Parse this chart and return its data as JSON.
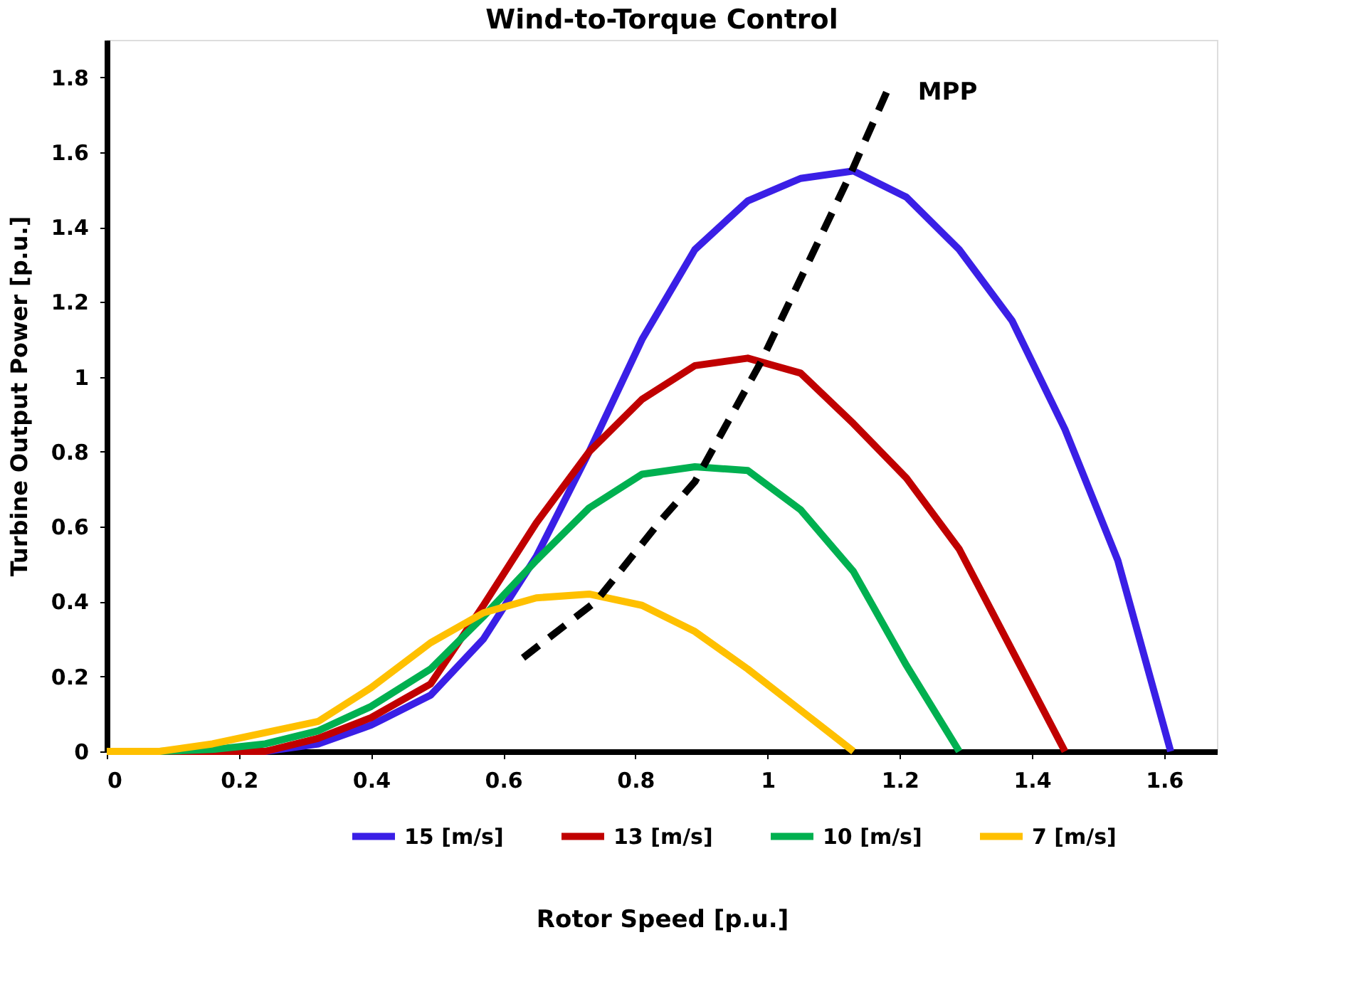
{
  "chart_data": {
    "type": "line",
    "title": "Wind-to-Torque Control",
    "xlabel": "Rotor Speed [p.u.]",
    "ylabel": "Turbine Output Power [p.u.]",
    "xlim": [
      0,
      1.68
    ],
    "xticks": [
      0,
      0.2,
      0.4,
      0.6,
      0.8,
      1,
      1.2,
      1.4,
      1.6
    ],
    "ylim": [
      0,
      1.9
    ],
    "yticks": [
      0,
      0.2,
      0.4,
      0.6,
      0.8,
      1,
      1.2,
      1.4,
      1.6,
      1.8
    ],
    "grid": false,
    "legend": "bottom",
    "marker": "none",
    "line_style": "solid",
    "series": [
      {
        "name": "15 [m/s]",
        "color": "#3a1fe6",
        "x": [
          0.16,
          0.24,
          0.32,
          0.4,
          0.49,
          0.57,
          0.65,
          0.73,
          0.81,
          0.89,
          0.97,
          1.05,
          1.13,
          1.21,
          1.29,
          1.37,
          1.45,
          1.53,
          1.61
        ],
        "values": [
          0,
          0,
          0.02,
          0.07,
          0.15,
          0.3,
          0.52,
          0.8,
          1.1,
          1.34,
          1.47,
          1.53,
          1.55,
          1.48,
          1.34,
          1.15,
          0.86,
          0.51,
          0
        ]
      },
      {
        "name": "13 [m/s]",
        "color": "#c00000",
        "x": [
          0,
          0.08,
          0.16,
          0.24,
          0.32,
          0.4,
          0.49,
          0.57,
          0.65,
          0.73,
          0.81,
          0.89,
          0.97,
          1.05,
          1.13,
          1.21,
          1.29,
          1.37,
          1.45
        ],
        "values": [
          0,
          0,
          0,
          0,
          0.035,
          0.09,
          0.18,
          0.39,
          0.61,
          0.8,
          0.94,
          1.03,
          1.05,
          1.01,
          0.875,
          0.73,
          0.54,
          0.27,
          0
        ]
      },
      {
        "name": "10 [m/s]",
        "color": "#00b050",
        "x": [
          0,
          0.08,
          0.16,
          0.24,
          0.32,
          0.4,
          0.49,
          0.57,
          0.65,
          0.73,
          0.81,
          0.89,
          0.97,
          1.05,
          1.13,
          1.21,
          1.29
        ],
        "values": [
          0,
          0,
          0.005,
          0.02,
          0.055,
          0.12,
          0.22,
          0.36,
          0.51,
          0.65,
          0.74,
          0.76,
          0.75,
          0.645,
          0.48,
          0.23,
          0
        ]
      },
      {
        "name": "7 [m/s]",
        "color": "#ffc000",
        "x": [
          0,
          0.08,
          0.16,
          0.24,
          0.32,
          0.4,
          0.49,
          0.57,
          0.65,
          0.73,
          0.81,
          0.89,
          0.97,
          1.05,
          1.13
        ],
        "values": [
          0,
          0,
          0.02,
          0.05,
          0.08,
          0.17,
          0.29,
          0.37,
          0.41,
          0.42,
          0.39,
          0.32,
          0.22,
          0.11,
          0
        ]
      },
      {
        "color": "#000000",
        "line_style": "dashed",
        "x": [
          0.63,
          0.74,
          0.84,
          0.89,
          0.99,
          1.125,
          1.18
        ],
        "values": [
          0.25,
          0.4,
          0.62,
          0.72,
          1.04,
          1.54,
          1.76
        ]
      }
    ],
    "annotations": [
      "MPP"
    ]
  }
}
